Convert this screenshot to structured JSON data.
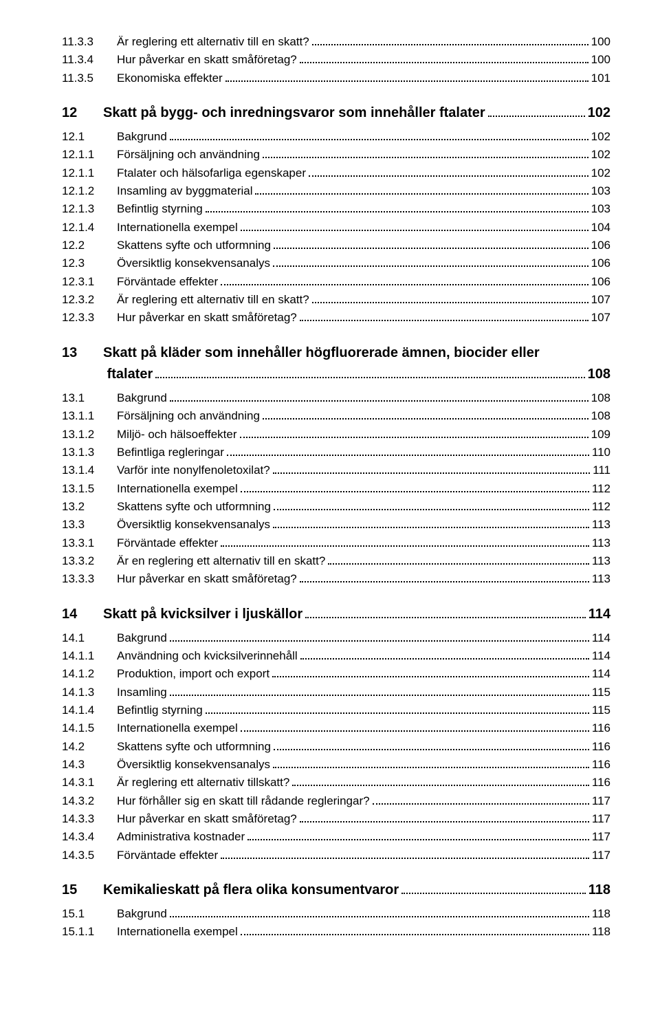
{
  "entries": [
    {
      "lvl": 3,
      "num": "11.3.3",
      "title": "Är reglering ett alternativ till en skatt?",
      "page": "100"
    },
    {
      "lvl": 3,
      "num": "11.3.4",
      "title": "Hur påverkar en skatt småföretag?",
      "page": "100"
    },
    {
      "lvl": 3,
      "num": "11.3.5",
      "title": "Ekonomiska effekter",
      "page": "101"
    },
    {
      "lvl": 1,
      "num": "12",
      "title": "Skatt på bygg- och inredningsvaror som innehåller ftalater",
      "page": "102",
      "chapter": true
    },
    {
      "lvl": 2,
      "num": "12.1",
      "title": "Bakgrund",
      "page": "102"
    },
    {
      "lvl": 3,
      "num": "12.1.1",
      "title": "Försäljning och användning",
      "page": "102"
    },
    {
      "lvl": 3,
      "num": "12.1.1",
      "title": "Ftalater och hälsofarliga egenskaper",
      "page": "102"
    },
    {
      "lvl": 3,
      "num": "12.1.2",
      "title": "Insamling av byggmaterial",
      "page": "103"
    },
    {
      "lvl": 3,
      "num": "12.1.3",
      "title": "Befintlig styrning",
      "page": "103"
    },
    {
      "lvl": 3,
      "num": "12.1.4",
      "title": "Internationella exempel",
      "page": "104"
    },
    {
      "lvl": 2,
      "num": "12.2",
      "title": "Skattens syfte och utformning",
      "page": "106"
    },
    {
      "lvl": 2,
      "num": "12.3",
      "title": "Översiktlig konsekvensanalys",
      "page": "106"
    },
    {
      "lvl": 3,
      "num": "12.3.1",
      "title": "Förväntade effekter",
      "page": "106"
    },
    {
      "lvl": 3,
      "num": "12.3.2",
      "title": "Är reglering ett alternativ till en skatt?",
      "page": "107"
    },
    {
      "lvl": 3,
      "num": "12.3.3",
      "title": "Hur påverkar en skatt småföretag?",
      "page": "107"
    },
    {
      "lvl": 1,
      "num": "13",
      "title": "Skatt på kläder som innehåller högfluorerade ämnen, biocider eller",
      "title2": " ftalater",
      "page": "108",
      "chapter": true
    },
    {
      "lvl": 2,
      "num": "13.1",
      "title": "Bakgrund",
      "page": "108"
    },
    {
      "lvl": 3,
      "num": "13.1.1",
      "title": "Försäljning och användning",
      "page": "108"
    },
    {
      "lvl": 3,
      "num": "13.1.2",
      "title": "Miljö- och hälsoeffekter",
      "page": "109"
    },
    {
      "lvl": 3,
      "num": "13.1.3",
      "title": "Befintliga regleringar",
      "page": "110"
    },
    {
      "lvl": 3,
      "num": "13.1.4",
      "title": "Varför inte nonylfenoletoxilat?",
      "page": "111"
    },
    {
      "lvl": 3,
      "num": "13.1.5",
      "title": "Internationella exempel",
      "page": "112"
    },
    {
      "lvl": 2,
      "num": "13.2",
      "title": "Skattens syfte och utformning",
      "page": "112"
    },
    {
      "lvl": 2,
      "num": "13.3",
      "title": "Översiktlig konsekvensanalys",
      "page": "113"
    },
    {
      "lvl": 3,
      "num": "13.3.1",
      "title": "Förväntade effekter",
      "page": "113"
    },
    {
      "lvl": 3,
      "num": "13.3.2",
      "title": "Är en reglering ett alternativ till en skatt?",
      "page": "113"
    },
    {
      "lvl": 3,
      "num": "13.3.3",
      "title": "Hur påverkar en skatt småföretag?",
      "page": "113"
    },
    {
      "lvl": 1,
      "num": "14",
      "title": "Skatt på kvicksilver i ljuskällor",
      "page": "114",
      "chapter": true
    },
    {
      "lvl": 2,
      "num": "14.1",
      "title": "Bakgrund",
      "page": "114"
    },
    {
      "lvl": 3,
      "num": "14.1.1",
      "title": "Användning och kvicksilverinnehåll",
      "page": "114"
    },
    {
      "lvl": 3,
      "num": "14.1.2",
      "title": "Produktion, import och export",
      "page": "114"
    },
    {
      "lvl": 3,
      "num": "14.1.3",
      "title": "Insamling",
      "page": "115"
    },
    {
      "lvl": 3,
      "num": "14.1.4",
      "title": "Befintlig styrning",
      "page": "115"
    },
    {
      "lvl": 3,
      "num": "14.1.5",
      "title": "Internationella exempel",
      "page": "116"
    },
    {
      "lvl": 2,
      "num": "14.2",
      "title": "Skattens syfte och utformning",
      "page": "116"
    },
    {
      "lvl": 2,
      "num": "14.3",
      "title": "Översiktlig konsekvensanalys",
      "page": "116"
    },
    {
      "lvl": 3,
      "num": "14.3.1",
      "title": "Är reglering ett alternativ tillskatt?",
      "page": "116"
    },
    {
      "lvl": 3,
      "num": "14.3.2",
      "title": "Hur förhåller sig en skatt till rådande regleringar?",
      "page": "117"
    },
    {
      "lvl": 3,
      "num": "14.3.3",
      "title": "Hur påverkar en skatt småföretag?",
      "page": "117"
    },
    {
      "lvl": 3,
      "num": "14.3.4",
      "title": "Administrativa kostnader",
      "page": "117"
    },
    {
      "lvl": 3,
      "num": "14.3.5",
      "title": "Förväntade effekter",
      "page": "117"
    },
    {
      "lvl": 1,
      "num": "15",
      "title": "Kemikalieskatt på flera olika konsumentvaror",
      "page": "118",
      "chapter": true
    },
    {
      "lvl": 2,
      "num": "15.1",
      "title": "Bakgrund",
      "page": "118"
    },
    {
      "lvl": 3,
      "num": "15.1.1",
      "title": "Internationella exempel",
      "page": "118"
    }
  ]
}
